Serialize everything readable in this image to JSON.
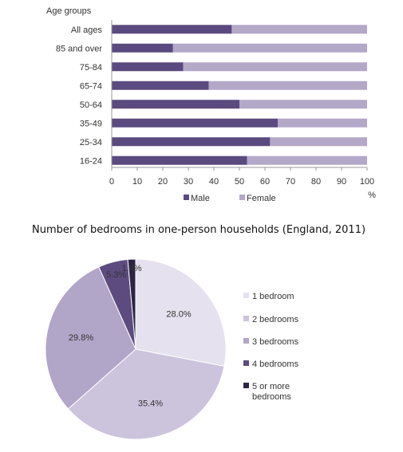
{
  "colors": {
    "male": "#5b4a7f",
    "female": "#b3a8c8",
    "pie": [
      "#e6e1ee",
      "#ccc4dc",
      "#b1a5c8",
      "#5d4b80",
      "#2d2444"
    ]
  },
  "chart_data": [
    {
      "type": "bar",
      "orientation": "horizontal",
      "stacked": true,
      "title": "",
      "category_axis_title": "Age groups",
      "value_axis_unit": "%",
      "categories": [
        "All ages",
        "85 and over",
        "75-84",
        "65-74",
        "50-64",
        "35-49",
        "25-34",
        "16-24"
      ],
      "series": [
        {
          "name": "Male",
          "values": [
            47,
            24,
            28,
            38,
            50,
            65,
            62,
            53
          ]
        },
        {
          "name": "Female",
          "values": [
            53,
            76,
            72,
            62,
            50,
            35,
            38,
            47
          ]
        }
      ],
      "xlim": [
        0,
        100
      ],
      "xticks": [
        "0",
        "10",
        "20",
        "30",
        "40",
        "50",
        "60",
        "70",
        "80",
        "90",
        "100"
      ],
      "legend_position": "bottom",
      "grid": false
    },
    {
      "type": "pie",
      "title": "Number of bedrooms in one-person households (England, 2011)",
      "labels": [
        "1 bedroom",
        "2 bedrooms",
        "3 bedrooms",
        "4 bedrooms",
        "5 or more bedrooms"
      ],
      "legend_lines": [
        [
          "1 bedroom"
        ],
        [
          "2 bedrooms"
        ],
        [
          "3 bedrooms"
        ],
        [
          "4 bedrooms"
        ],
        [
          "5 or more",
          "bedrooms"
        ]
      ],
      "values": [
        28.0,
        35.4,
        29.8,
        5.3,
        1.4
      ],
      "value_labels": [
        "28.0%",
        "35.4%",
        "29.8%",
        "5.3%",
        "1.4%"
      ],
      "legend_position": "right"
    }
  ]
}
